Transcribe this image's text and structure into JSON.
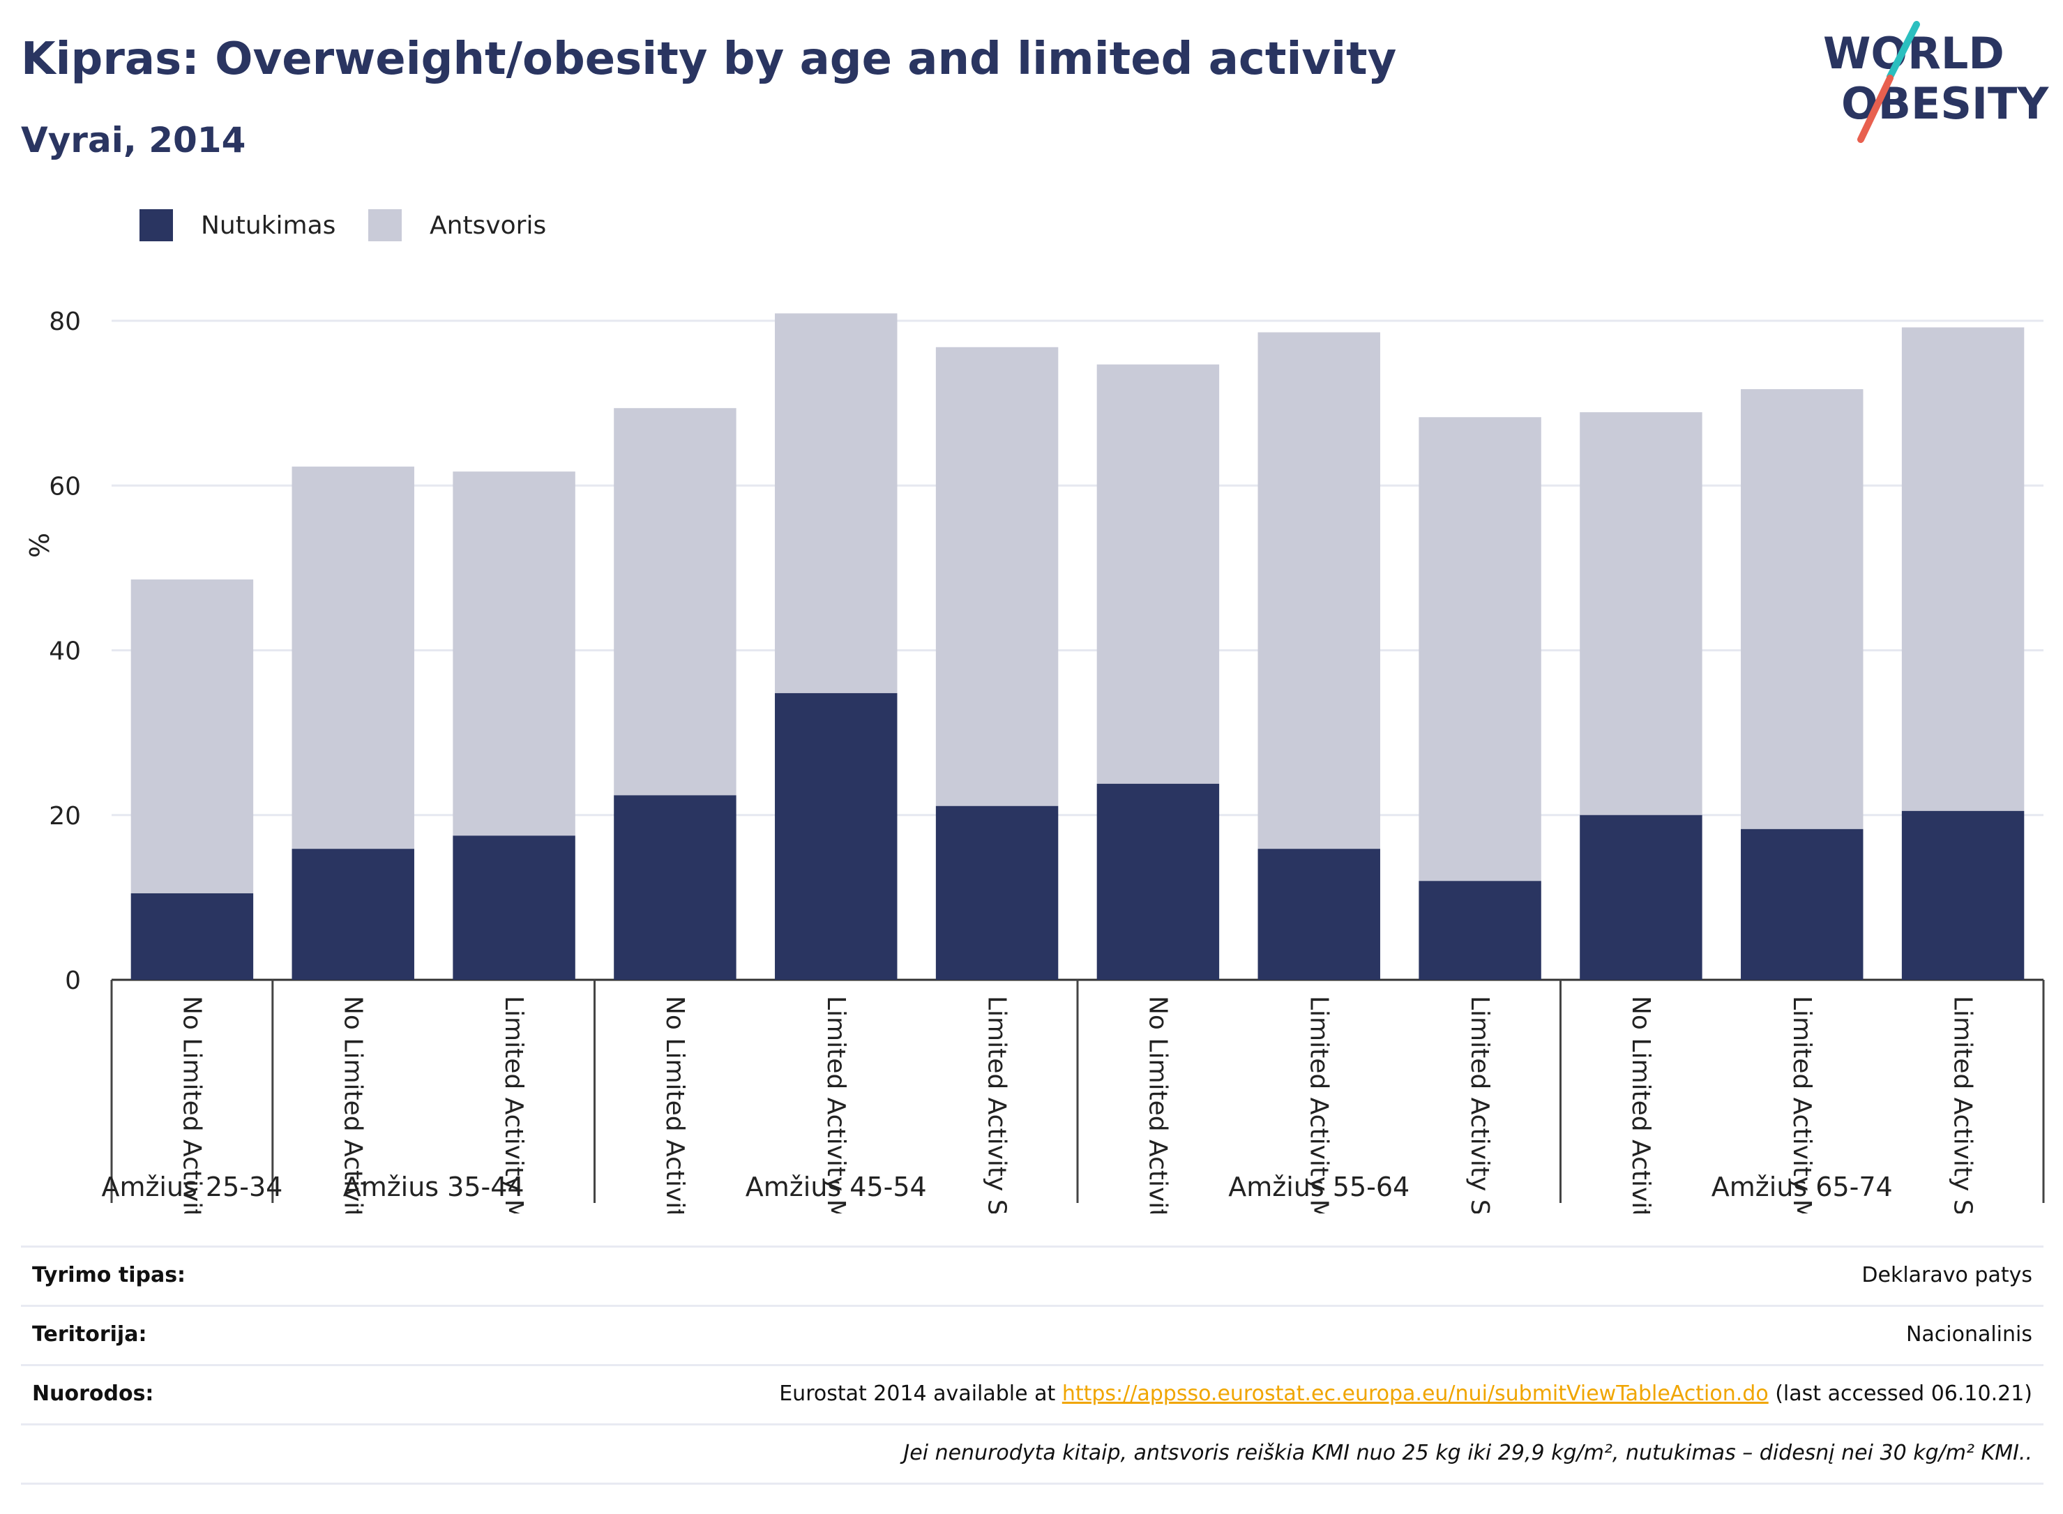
{
  "header": {
    "title": "Kipras: Overweight/obesity by age and limited activity",
    "subtitle": "Vyrai, 2014"
  },
  "logo": {
    "line1": "WORLD",
    "line2": "OBESITY"
  },
  "colors": {
    "obesity": "#2a3561",
    "overweight": "#c9cbd8",
    "accent_teal": "#2bbfbf",
    "accent_red": "#e8604f",
    "link": "#f0a500"
  },
  "chart_data": {
    "type": "bar",
    "stacked": true,
    "ylabel": "%",
    "ylim": [
      0,
      80
    ],
    "yticks": [
      0,
      20,
      40,
      60,
      80
    ],
    "grid": true,
    "legend_position": "top-left",
    "groups": [
      {
        "label": "Amžius 25-34",
        "size": 1
      },
      {
        "label": "Amžius 35-44",
        "size": 2
      },
      {
        "label": "Amžius 45-54",
        "size": 3
      },
      {
        "label": "Amžius 55-64",
        "size": 3
      },
      {
        "label": "Amžius 65-74",
        "size": 3
      }
    ],
    "categories": [
      "No Limited Activity",
      "No Limited Activity",
      "Limited Activity Moderate",
      "No Limited Activity",
      "Limited Activity Moderate",
      "Limited Activity Severe",
      "No Limited Activity",
      "Limited Activity Moderate",
      "Limited Activity Severe",
      "No Limited Activity",
      "Limited Activity Moderate",
      "Limited Activity Severe"
    ],
    "series": [
      {
        "name": "Nutukimas",
        "values": [
          10.5,
          15.9,
          17.5,
          22.4,
          34.8,
          21.1,
          23.8,
          15.9,
          12.0,
          20.0,
          18.3,
          20.5
        ]
      },
      {
        "name": "Antsvoris",
        "values": [
          38.1,
          46.4,
          44.2,
          47.0,
          46.1,
          55.7,
          50.9,
          62.7,
          56.3,
          48.9,
          53.4,
          58.7
        ]
      }
    ]
  },
  "meta": {
    "rows": [
      {
        "label": "Tyrimo tipas:",
        "value": "Deklaravo patys"
      },
      {
        "label": "Teritorija:",
        "value": "Nacionalinis"
      }
    ],
    "references": {
      "label": "Nuorodos:",
      "prefix": "Eurostat 2014 available at ",
      "link": "https://appsso.eurostat.ec.europa.eu/nui/submitViewTableAction.do",
      "suffix": " (last accessed 06.10.21)"
    },
    "note": "Jei nenurodyta kitaip, antsvoris reiškia KMI nuo 25 kg iki 29,9 kg/m², nutukimas – didesnį nei 30 kg/m² KMI.."
  }
}
